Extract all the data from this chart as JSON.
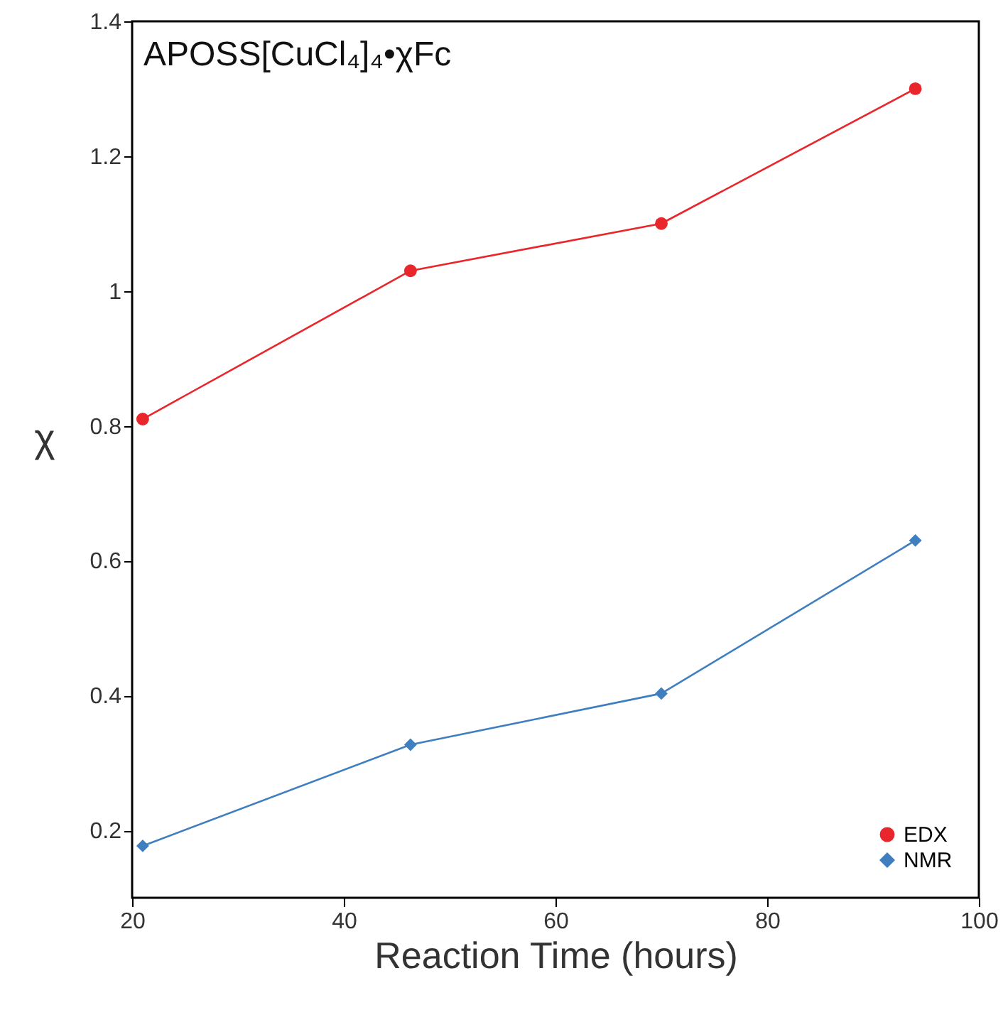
{
  "chart_data": {
    "type": "line",
    "title": "APOSS[CuCl₄]₄•χFc",
    "xlabel": "Reaction Time (hours)",
    "ylabel": "χ",
    "x": [
      21,
      46.3,
      70,
      94
    ],
    "series": [
      {
        "name": "EDX",
        "color": "#e8262b",
        "marker": "circle",
        "values": [
          0.81,
          1.03,
          1.1,
          1.3
        ]
      },
      {
        "name": "NMR",
        "color": "#3f7fbf",
        "marker": "diamond",
        "values": [
          0.177,
          0.327,
          0.403,
          0.63
        ]
      }
    ],
    "xlim": [
      20,
      100
    ],
    "xticks": [
      20,
      40,
      60,
      80,
      100
    ],
    "ylim": [
      0.1,
      1.4
    ],
    "yticks": [
      0.2,
      0.4,
      0.6,
      0.8,
      1,
      1.2,
      1.4
    ],
    "grid": false,
    "legend": "bottom right",
    "line_style": "solid"
  }
}
